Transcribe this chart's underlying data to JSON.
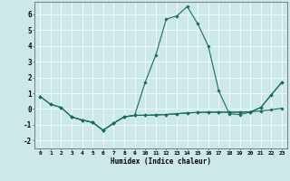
{
  "xlabel": "Humidex (Indice chaleur)",
  "background_color": "#cce8e8",
  "line_color": "#1a6b5a",
  "grid_color": "#ffffff",
  "xlim": [
    -0.5,
    23.5
  ],
  "ylim": [
    -2.5,
    6.8
  ],
  "xticks": [
    0,
    1,
    2,
    3,
    4,
    5,
    6,
    7,
    8,
    9,
    10,
    11,
    12,
    13,
    14,
    15,
    16,
    17,
    18,
    19,
    20,
    21,
    22,
    23
  ],
  "yticks": [
    -2,
    -1,
    0,
    1,
    2,
    3,
    4,
    5,
    6
  ],
  "line1_x": [
    0,
    1,
    2,
    3,
    4,
    5,
    6,
    7,
    8,
    9,
    10,
    11,
    12,
    13,
    14,
    15,
    16,
    17,
    18,
    19,
    20,
    21,
    22,
    23
  ],
  "line1_y": [
    0.8,
    0.3,
    0.1,
    -0.5,
    -0.7,
    -0.85,
    -1.35,
    -0.9,
    -0.5,
    -0.4,
    -0.4,
    -0.38,
    -0.35,
    -0.3,
    -0.25,
    -0.22,
    -0.2,
    -0.2,
    -0.2,
    -0.2,
    -0.18,
    -0.12,
    -0.05,
    0.05
  ],
  "line2_x": [
    3,
    4,
    5,
    6,
    7,
    8,
    9,
    10,
    11,
    12,
    13,
    14,
    15,
    16,
    17,
    18,
    19,
    20,
    21,
    22,
    23
  ],
  "line2_y": [
    -0.5,
    -0.7,
    -0.85,
    -1.35,
    -0.9,
    -0.5,
    -0.4,
    1.7,
    3.4,
    5.7,
    5.9,
    6.5,
    5.4,
    4.0,
    1.15,
    -0.3,
    -0.35,
    -0.2,
    0.1,
    0.9,
    1.7
  ],
  "line3_x": [
    0,
    1,
    2,
    3,
    4,
    5,
    6,
    7,
    8,
    9,
    10,
    11,
    12,
    13,
    14,
    15,
    16,
    17,
    18,
    19,
    20,
    21,
    22,
    23
  ],
  "line3_y": [
    0.8,
    0.3,
    0.1,
    -0.5,
    -0.7,
    -0.85,
    -1.35,
    -0.9,
    -0.5,
    -0.4,
    -0.4,
    -0.38,
    -0.35,
    -0.3,
    -0.25,
    -0.22,
    -0.2,
    -0.2,
    -0.2,
    -0.2,
    -0.18,
    0.1,
    0.9,
    1.7
  ]
}
